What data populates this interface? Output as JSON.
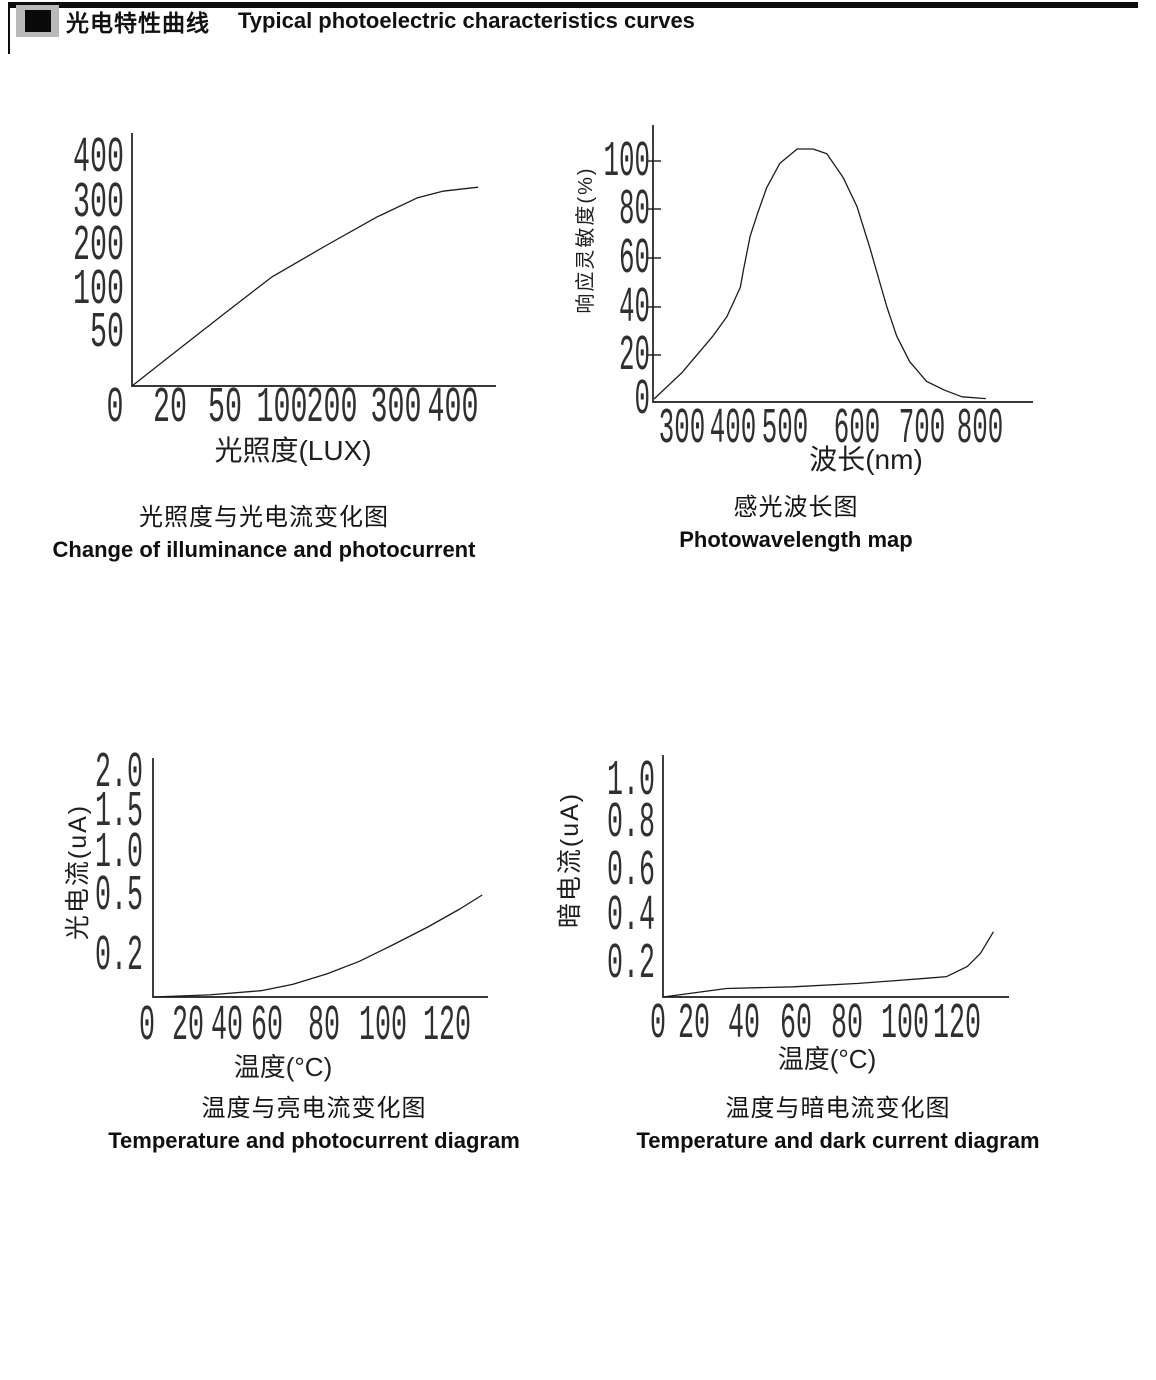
{
  "page_title": {
    "zh": "光电特性曲线",
    "en": "Typical photoelectric characteristics curves"
  },
  "chart_data": [
    {
      "type": "line",
      "title_zh": "光照度与光电流变化图",
      "title_en": "Change of illuminance and photocurrent",
      "xlabel": "光照度(LUX)",
      "ylabel": "",
      "x_ticks": [
        "0",
        "20",
        "50",
        "100",
        "200",
        "300",
        "400"
      ],
      "y_ticks": [
        "400",
        "300",
        "200",
        "100",
        "50"
      ],
      "xlim": [
        0,
        450
      ],
      "ylim": [
        0,
        430
      ],
      "grid": false,
      "points": [
        [
          0,
          0
        ],
        [
          24,
          33
        ],
        [
          51,
          73
        ],
        [
          91,
          127
        ],
        [
          190,
          200
        ],
        [
          270,
          265
        ],
        [
          337,
          309
        ],
        [
          382,
          324
        ],
        [
          444,
          333
        ]
      ]
    },
    {
      "type": "line",
      "title_zh": "感光波长图",
      "title_en": "Photowavelength map",
      "xlabel": "波长(nm)",
      "ylabel": "响应灵敏度(%)",
      "x_ticks": [
        "300",
        "400",
        "500",
        "600",
        "700",
        "800"
      ],
      "y_ticks": [
        "100",
        "80",
        "60",
        "40",
        "20",
        "0"
      ],
      "xlim": [
        250,
        900
      ],
      "ylim": [
        0,
        110
      ],
      "grid": false,
      "points": [
        [
          245,
          0
        ],
        [
          300,
          12
        ],
        [
          361,
          28
        ],
        [
          388,
          36
        ],
        [
          414,
          48
        ],
        [
          420,
          55
        ],
        [
          433,
          69
        ],
        [
          447,
          78
        ],
        [
          465,
          89
        ],
        [
          490,
          99
        ],
        [
          517,
          105
        ],
        [
          539,
          105
        ],
        [
          558,
          103
        ],
        [
          581,
          93
        ],
        [
          600,
          81
        ],
        [
          620,
          64
        ],
        [
          635,
          50
        ],
        [
          646,
          40
        ],
        [
          661,
          28
        ],
        [
          681,
          17
        ],
        [
          708,
          8
        ],
        [
          739,
          4
        ],
        [
          769,
          1
        ],
        [
          810,
          0.2
        ]
      ]
    },
    {
      "type": "line",
      "title_zh": "温度与亮电流变化图",
      "title_en": "Temperature and photocurrent diagram",
      "xlabel": "温度(°C)",
      "ylabel": "光电流(uA)",
      "x_ticks": [
        "0",
        "20",
        "40",
        "60",
        "80",
        "100",
        "120"
      ],
      "y_ticks": [
        "2.0",
        "1.5",
        "1.0",
        "0.5",
        "0.2"
      ],
      "xlim": [
        0,
        135
      ],
      "ylim": [
        0,
        2.0
      ],
      "grid": false,
      "points": [
        [
          0,
          0
        ],
        [
          31,
          0.01
        ],
        [
          57,
          0.03
        ],
        [
          69,
          0.06
        ],
        [
          81,
          0.11
        ],
        [
          92,
          0.17
        ],
        [
          103,
          0.25
        ],
        [
          114,
          0.34
        ],
        [
          124,
          0.43
        ],
        [
          131,
          0.5
        ]
      ]
    },
    {
      "type": "line",
      "title_zh": "温度与暗电流变化图",
      "title_en": "Temperature and dark current diagram",
      "xlabel": "温度(°C)",
      "ylabel": "暗电流(uA)",
      "x_ticks": [
        "0",
        "20",
        "40",
        "60",
        "80",
        "100",
        "120"
      ],
      "y_ticks": [
        "1.0",
        "0.8",
        "0.6",
        "0.4",
        "0.2"
      ],
      "xlim": [
        0,
        135
      ],
      "ylim": [
        0,
        1.0
      ],
      "grid": false,
      "points": [
        [
          0,
          0
        ],
        [
          33,
          0.05
        ],
        [
          59,
          0.06
        ],
        [
          84,
          0.08
        ],
        [
          108,
          0.11
        ],
        [
          116,
          0.12
        ],
        [
          124,
          0.18
        ],
        [
          129,
          0.24
        ],
        [
          134,
          0.33
        ]
      ]
    }
  ]
}
